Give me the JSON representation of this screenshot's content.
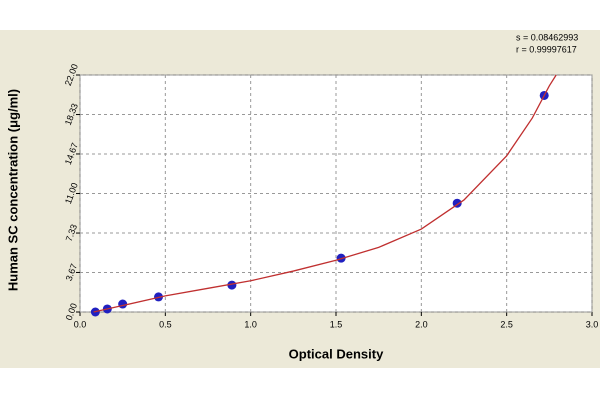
{
  "chart_data": {
    "type": "scatter",
    "x_label": "Optical Density",
    "y_label": "Human SC concentration (μg/ml)",
    "annotations": [
      "s = 0.08462993",
      "r = 0.99997617"
    ],
    "xlim": [
      0,
      3.0
    ],
    "ylim": [
      0,
      22
    ],
    "xticks": [
      {
        "value": 0,
        "label": "0.0"
      },
      0.5,
      {
        "value": 1,
        "label": "1.0"
      },
      1.5,
      {
        "value": 2,
        "label": "2.0"
      },
      2.5,
      {
        "value": 3,
        "label": "3.0"
      }
    ],
    "yticks": [
      {
        "value": 0,
        "label": "0.00"
      },
      3.67,
      7.33,
      {
        "value": 11,
        "label": "11.00"
      },
      14.67,
      18.33,
      {
        "value": 22,
        "label": "22.00"
      }
    ],
    "grid": true,
    "series": [
      {
        "kind": "points",
        "color": "#2020c0",
        "x": [
          0.09,
          0.16,
          0.25,
          0.46,
          0.89,
          1.53,
          2.21,
          2.72
        ],
        "values": [
          0.0,
          0.28,
          0.74,
          1.4,
          2.5,
          5.0,
          10.1,
          20.1
        ]
      },
      {
        "kind": "line",
        "color": "#c03030",
        "x": [
          0.08,
          0.25,
          0.5,
          0.75,
          1.0,
          1.25,
          1.5,
          1.75,
          2.0,
          2.25,
          2.5,
          2.65,
          2.75,
          2.79
        ],
        "values": [
          0,
          0.6,
          1.5,
          2.2,
          2.9,
          3.8,
          4.8,
          6.0,
          7.7,
          10.4,
          14.5,
          18.0,
          21.0,
          22.0
        ]
      }
    ]
  }
}
